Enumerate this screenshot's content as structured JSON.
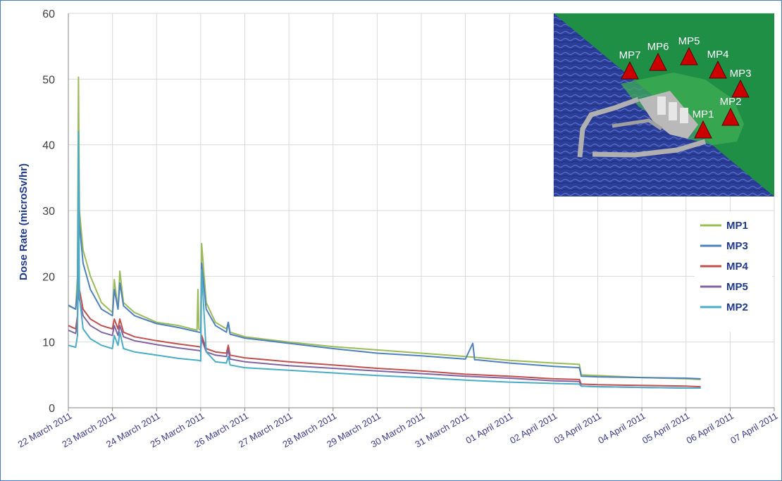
{
  "chart_data": {
    "type": "line",
    "title": "",
    "xlabel": "",
    "ylabel": "Dose Rate (microSv/hr)",
    "ylim": [
      0,
      60
    ],
    "yticks": [
      "0",
      "10",
      "20",
      "30",
      "40",
      "50",
      "60"
    ],
    "xlim": [
      "2011-03-22",
      "2011-04-07"
    ],
    "xticks": [
      "22 March 2011",
      "23 March 2011",
      "24 March 2011",
      "25 March 2011",
      "26 March 2011",
      "27 March 2011",
      "28 March 2011",
      "29 March 2011",
      "30 March 2011",
      "31 March 2011",
      "01 April 2011",
      "02 April 2011",
      "03 April 2011",
      "04 April 2011",
      "05 April 2011",
      "06 April 2011",
      "07 April 2011"
    ],
    "grid": true,
    "legend": "right",
    "series": [
      {
        "name": "MP1",
        "color": "#9bbb59",
        "x": [
          "2011-03-22",
          "2011-03-22T04:00",
          "2011-03-22T05:00",
          "2011-03-22T05:30",
          "2011-03-22T06:00",
          "2011-03-22T08:00",
          "2011-03-22T12:00",
          "2011-03-22T18:00",
          "2011-03-23",
          "2011-03-23T01:00",
          "2011-03-23T03:00",
          "2011-03-23T04:00",
          "2011-03-23T06:00",
          "2011-03-23T12:00",
          "2011-03-24",
          "2011-03-24T12:00",
          "2011-03-24T22:00",
          "2011-03-24T22:30",
          "2011-03-24T23:00",
          "2011-03-25",
          "2011-03-25T00:30",
          "2011-03-25T03:00",
          "2011-03-25T08:00",
          "2011-03-25T14:00",
          "2011-03-25T15:00",
          "2011-03-25T16:00",
          "2011-03-26",
          "2011-03-27",
          "2011-03-28",
          "2011-03-29",
          "2011-03-30",
          "2011-03-31",
          "2011-04-01",
          "2011-04-02",
          "2011-04-02T14:00",
          "2011-04-02T15:00",
          "2011-04-03",
          "2011-04-04",
          "2011-04-05",
          "2011-04-05T08:00"
        ],
        "y": [
          15.5,
          15.0,
          20.0,
          50.3,
          30.0,
          24.0,
          20.0,
          16.0,
          14.5,
          19.5,
          15.0,
          20.8,
          16.0,
          14.5,
          13.0,
          12.5,
          11.8,
          18.0,
          12.0,
          11.8,
          25.0,
          16.0,
          13.0,
          12.0,
          13.0,
          11.5,
          10.8,
          10.0,
          9.3,
          8.8,
          8.3,
          7.8,
          7.2,
          6.8,
          6.6,
          5.0,
          4.9,
          4.6,
          4.4,
          4.3
        ]
      },
      {
        "name": "MP3",
        "color": "#4f81bd",
        "x": [
          "2011-03-22",
          "2011-03-22T04:00",
          "2011-03-22T05:00",
          "2011-03-22T05:30",
          "2011-03-22T06:00",
          "2011-03-22T08:00",
          "2011-03-22T12:00",
          "2011-03-22T18:00",
          "2011-03-23",
          "2011-03-23T01:00",
          "2011-03-23T03:00",
          "2011-03-23T04:00",
          "2011-03-23T06:00",
          "2011-03-23T12:00",
          "2011-03-24",
          "2011-03-24T12:00",
          "2011-03-24T23:00",
          "2011-03-25",
          "2011-03-25T00:30",
          "2011-03-25T03:00",
          "2011-03-25T08:00",
          "2011-03-25T14:00",
          "2011-03-25T15:00",
          "2011-03-25T16:00",
          "2011-03-26",
          "2011-03-27",
          "2011-03-28",
          "2011-03-29",
          "2011-03-30",
          "2011-03-31",
          "2011-03-31T04:00",
          "2011-03-31T05:00",
          "2011-03-31T06:00",
          "2011-04-01",
          "2011-04-02",
          "2011-04-02T14:00",
          "2011-04-02T15:00",
          "2011-04-03",
          "2011-04-04",
          "2011-04-05",
          "2011-04-05T08:00"
        ],
        "y": [
          15.6,
          15.0,
          18.0,
          40.0,
          28.0,
          22.0,
          18.0,
          15.0,
          14.0,
          18.0,
          15.0,
          19.0,
          15.5,
          14.0,
          12.8,
          12.2,
          11.5,
          11.5,
          22.0,
          15.0,
          12.5,
          11.5,
          13.0,
          11.2,
          10.6,
          9.8,
          9.0,
          8.3,
          7.9,
          7.4,
          9.8,
          7.3,
          7.3,
          6.8,
          6.3,
          6.1,
          4.8,
          4.7,
          4.6,
          4.5,
          4.4
        ]
      },
      {
        "name": "MP4",
        "color": "#c0504d",
        "x": [
          "2011-03-22",
          "2011-03-22T04:00",
          "2011-03-22T05:00",
          "2011-03-22T05:30",
          "2011-03-22T06:00",
          "2011-03-22T08:00",
          "2011-03-22T12:00",
          "2011-03-22T18:00",
          "2011-03-23",
          "2011-03-23T01:00",
          "2011-03-23T03:00",
          "2011-03-23T04:00",
          "2011-03-23T06:00",
          "2011-03-23T12:00",
          "2011-03-24",
          "2011-03-24T12:00",
          "2011-03-24T23:00",
          "2011-03-25",
          "2011-03-25T00:30",
          "2011-03-25T03:00",
          "2011-03-25T08:00",
          "2011-03-25T14:00",
          "2011-03-25T15:00",
          "2011-03-25T16:00",
          "2011-03-26",
          "2011-03-27",
          "2011-03-28",
          "2011-03-29",
          "2011-03-30",
          "2011-03-31",
          "2011-04-01",
          "2011-04-02",
          "2011-04-02T14:00",
          "2011-04-02T15:00",
          "2011-04-03",
          "2011-04-04",
          "2011-04-05",
          "2011-04-05T08:00"
        ],
        "y": [
          12.5,
          12.0,
          14.0,
          23.0,
          18.0,
          15.0,
          13.5,
          12.5,
          12.0,
          13.5,
          12.0,
          13.5,
          11.5,
          10.8,
          10.2,
          9.7,
          9.3,
          9.2,
          11.0,
          9.0,
          8.5,
          8.3,
          9.5,
          8.0,
          7.6,
          7.0,
          6.5,
          6.0,
          5.6,
          5.1,
          4.8,
          4.4,
          4.3,
          3.6,
          3.5,
          3.4,
          3.3,
          3.2
        ]
      },
      {
        "name": "MP5",
        "color": "#8064a2",
        "x": [
          "2011-03-22",
          "2011-03-22T04:00",
          "2011-03-22T05:00",
          "2011-03-22T05:30",
          "2011-03-22T06:00",
          "2011-03-22T08:00",
          "2011-03-22T12:00",
          "2011-03-22T18:00",
          "2011-03-23",
          "2011-03-23T01:00",
          "2011-03-23T03:00",
          "2011-03-23T04:00",
          "2011-03-23T06:00",
          "2011-03-23T12:00",
          "2011-03-24",
          "2011-03-24T12:00",
          "2011-03-24T23:00",
          "2011-03-25",
          "2011-03-25T00:30",
          "2011-03-25T03:00",
          "2011-03-25T08:00",
          "2011-03-25T14:00",
          "2011-03-25T15:00",
          "2011-03-25T16:00",
          "2011-03-26",
          "2011-03-27",
          "2011-03-28",
          "2011-03-29",
          "2011-03-30",
          "2011-03-31",
          "2011-04-01",
          "2011-04-02",
          "2011-04-02T14:00",
          "2011-04-02T15:00",
          "2011-04-03",
          "2011-04-04",
          "2011-04-05",
          "2011-04-05T08:00"
        ],
        "y": [
          11.8,
          11.3,
          13.0,
          21.0,
          16.5,
          14.0,
          12.5,
          11.5,
          11.0,
          12.5,
          11.0,
          12.5,
          10.8,
          10.2,
          9.6,
          9.1,
          8.7,
          8.6,
          10.5,
          8.5,
          8.0,
          7.8,
          8.8,
          7.4,
          7.0,
          6.4,
          6.0,
          5.6,
          5.2,
          4.8,
          4.5,
          4.1,
          4.0,
          3.3,
          3.2,
          3.1,
          3.0,
          3.0
        ]
      },
      {
        "name": "MP2",
        "color": "#4bacc6",
        "x": [
          "2011-03-22",
          "2011-03-22T04:00",
          "2011-03-22T05:00",
          "2011-03-22T05:30",
          "2011-03-22T06:00",
          "2011-03-22T08:00",
          "2011-03-22T12:00",
          "2011-03-22T18:00",
          "2011-03-23",
          "2011-03-23T01:00",
          "2011-03-23T03:00",
          "2011-03-23T04:00",
          "2011-03-23T06:00",
          "2011-03-23T12:00",
          "2011-03-24",
          "2011-03-24T12:00",
          "2011-03-24T23:00",
          "2011-03-25",
          "2011-03-25T00:30",
          "2011-03-25T03:00",
          "2011-03-25T08:00",
          "2011-03-25T14:00",
          "2011-03-25T15:00",
          "2011-03-25T16:00",
          "2011-03-26",
          "2011-03-27",
          "2011-03-28",
          "2011-03-29",
          "2011-03-30",
          "2011-03-31",
          "2011-04-01",
          "2011-04-02",
          "2011-04-02T14:00",
          "2011-04-02T15:00",
          "2011-04-03",
          "2011-04-04",
          "2011-04-05",
          "2011-04-05T08:00"
        ],
        "y": [
          9.5,
          9.2,
          11.0,
          42.0,
          17.0,
          12.0,
          10.5,
          9.5,
          9.0,
          11.0,
          9.5,
          11.5,
          9.0,
          8.5,
          8.0,
          7.5,
          7.2,
          7.1,
          21.0,
          8.5,
          7.0,
          6.8,
          7.8,
          6.5,
          6.1,
          5.7,
          5.3,
          4.9,
          4.6,
          4.2,
          3.9,
          3.7,
          3.6,
          3.3,
          3.2,
          3.1,
          3.0,
          3.0
        ]
      }
    ]
  },
  "inset_map": {
    "colors": {
      "sea": "#2b3f9a",
      "land": "#1f8f46",
      "marker": "#cc0000"
    },
    "markers": [
      {
        "label": "MP7"
      },
      {
        "label": "MP6"
      },
      {
        "label": "MP5"
      },
      {
        "label": "MP4"
      },
      {
        "label": "MP3"
      },
      {
        "label": "MP2"
      },
      {
        "label": "MP1"
      }
    ]
  }
}
